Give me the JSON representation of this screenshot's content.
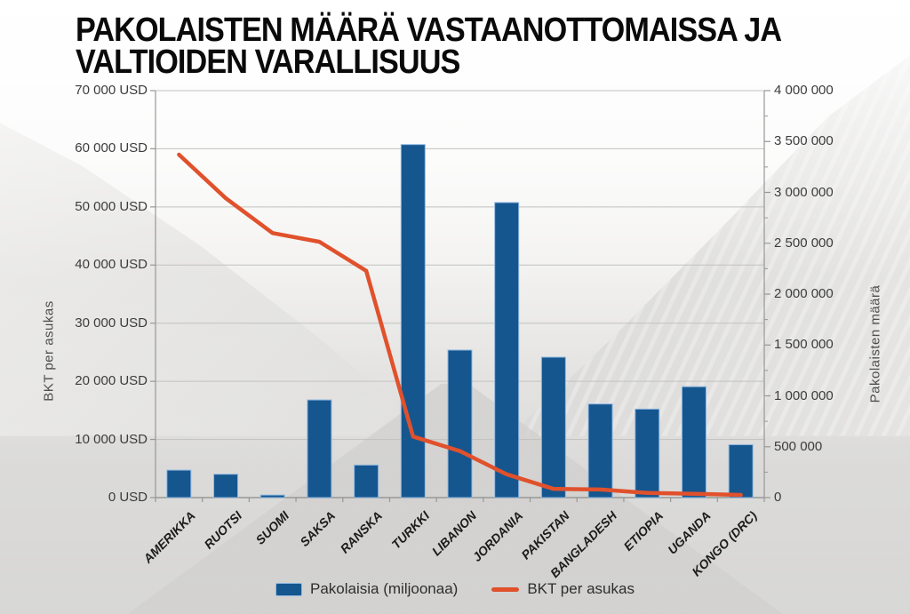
{
  "header": {
    "title_line1": "PAKOLAISTEN MÄÄRÄ VASTAANOTTOMAISSA JA",
    "title_line2": "VALTIOIDEN VARALLISUUS"
  },
  "colors": {
    "bar": "#15568f",
    "bar_edge": "#8fb8e0",
    "line": "#e0512c",
    "grid": "#c2c1bf",
    "axis": "#979796",
    "tick_text": "#3c3c3c"
  },
  "chart_data": {
    "type": "combo-bar-line",
    "categories": [
      "AMERIKKA",
      "RUOTSI",
      "SUOMI",
      "SAKSA",
      "RANSKA",
      "TURKKI",
      "LIBANON",
      "JORDANIA",
      "PAKISTAN",
      "BANGLADESH",
      "ETIOPIA",
      "UGANDA",
      "KONGO (DRC)"
    ],
    "series": [
      {
        "name": "Pakolaisia (miljoonaa)",
        "type": "bar",
        "axis": "right",
        "color": "#15568f",
        "values": [
          270000,
          230000,
          25000,
          960000,
          320000,
          3470000,
          1450000,
          2900000,
          1380000,
          920000,
          870000,
          1090000,
          520000
        ]
      },
      {
        "name": "BKT per asukas",
        "type": "line",
        "axis": "left",
        "color": "#e0512c",
        "values": [
          59000,
          51500,
          45500,
          44000,
          39000,
          10500,
          8000,
          4000,
          1500,
          1400,
          800,
          650,
          450
        ]
      }
    ],
    "left_axis": {
      "title": "BKT per asukas",
      "min": 0,
      "max": 70000,
      "tick_values": [
        70000,
        60000,
        50000,
        40000,
        30000,
        20000,
        10000,
        0
      ],
      "tick_labels": [
        "70 000 USD",
        "60 000 USD",
        "50 000 USD",
        "40 000 USD",
        "30 000 USD",
        "20 000 USD",
        "10 000 USD",
        "0 USD"
      ]
    },
    "right_axis": {
      "title": "Pakolaisten määrä",
      "min": 0,
      "max": 4000000,
      "tick_values": [
        4000000,
        3500000,
        3000000,
        2500000,
        2000000,
        1500000,
        1000000,
        500000,
        0
      ],
      "tick_labels": [
        "4 000 000",
        "3 500 000",
        "3 000 000",
        "2 500 000",
        "2 000 000",
        "1 500 000",
        "1 000 000",
        "500 000",
        "0"
      ],
      "minor_tick_step": 250000
    },
    "grid": true,
    "legend_position": "bottom",
    "legend": [
      "Pakolaisia (miljoonaa)",
      "BKT per asukas"
    ]
  }
}
